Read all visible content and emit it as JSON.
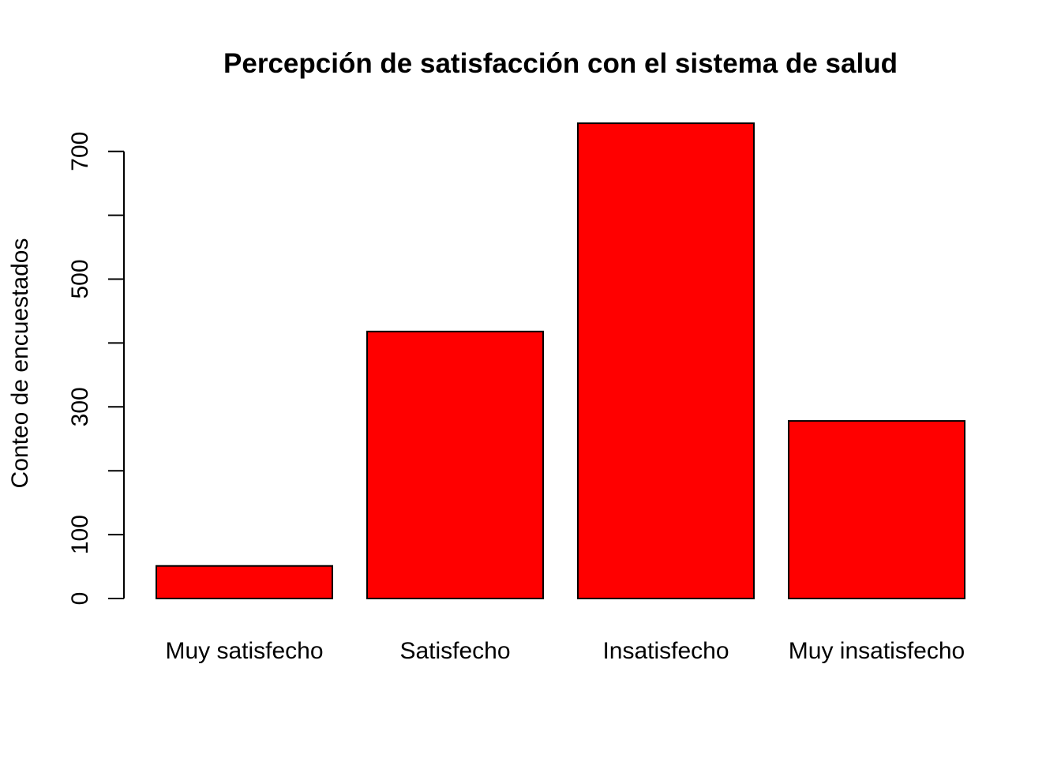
{
  "chart_data": {
    "type": "bar",
    "title": "Percepción de satisfacción con el sistema de salud",
    "xlabel": "",
    "ylabel": "Conteo de encuestados",
    "categories": [
      "Muy satisfecho",
      "Satisfecho",
      "Insatisfecho",
      "Muy insatisfecho"
    ],
    "values": [
      51,
      418,
      744,
      278
    ],
    "yticks": [
      0,
      100,
      200,
      300,
      400,
      500,
      600,
      700
    ],
    "ytick_labels": [
      "0",
      "100",
      "",
      "300",
      "",
      "500",
      "",
      "700"
    ],
    "ylim": [
      0,
      744
    ],
    "grid": false,
    "legend": "none",
    "bar_color": "#ff0000",
    "bar_border_color": "#000000"
  }
}
